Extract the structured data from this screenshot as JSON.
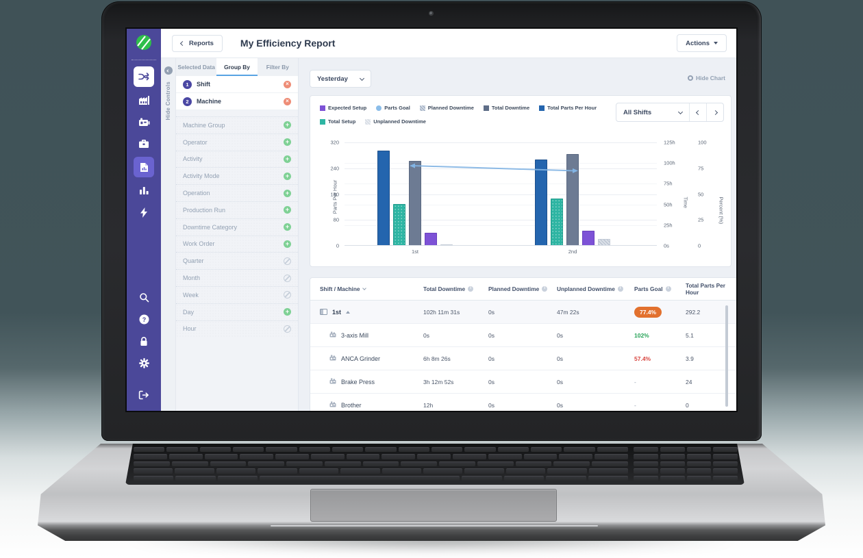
{
  "app": {
    "back_button": "Reports",
    "page_title": "My Efficiency Report",
    "actions_button": "Actions",
    "date_filter": "Yesterday",
    "hide_chart": "Hide Chart",
    "shift_filter": "All Shifts",
    "hide_controls": "Hide Controls"
  },
  "sidebar": {
    "logo": "machinemetrics-logo",
    "top_icons": [
      "shuffle-icon",
      "factory-icon",
      "machine-icon",
      "toolbox-icon",
      "report-icon",
      "bar-chart-icon",
      "lightning-icon"
    ],
    "selected_icon": "shuffle-icon",
    "active_icon": "report-icon",
    "bottom_icons": [
      "search-icon",
      "help-icon",
      "lock-icon",
      "settings-icon",
      "logout-icon"
    ]
  },
  "controls": {
    "tabs": [
      {
        "label": "Selected Data",
        "active": false
      },
      {
        "label": "Group By",
        "active": true
      },
      {
        "label": "Filter By",
        "active": false
      }
    ],
    "selected_groups": [
      {
        "order": "1",
        "label": "Shift"
      },
      {
        "order": "2",
        "label": "Machine"
      }
    ],
    "available_groups": [
      {
        "label": "Machine Group",
        "state": "add"
      },
      {
        "label": "Operator",
        "state": "add"
      },
      {
        "label": "Activity",
        "state": "add"
      },
      {
        "label": "Activity Mode",
        "state": "add"
      },
      {
        "label": "Operation",
        "state": "add"
      },
      {
        "label": "Production Run",
        "state": "add"
      },
      {
        "label": "Downtime Category",
        "state": "add"
      },
      {
        "label": "Work Order",
        "state": "add"
      },
      {
        "label": "Quarter",
        "state": "disabled"
      },
      {
        "label": "Month",
        "state": "disabled"
      },
      {
        "label": "Week",
        "state": "disabled"
      },
      {
        "label": "Day",
        "state": "add"
      },
      {
        "label": "Hour",
        "state": "disabled"
      }
    ]
  },
  "chart_data": {
    "type": "bar",
    "categories": [
      "1st",
      "2nd"
    ],
    "series": [
      {
        "name": "Total Parts Per Hour",
        "type": "bar",
        "axis": "parts",
        "color": "#2465ae",
        "border": "#1c4f8c",
        "values": [
          292.2,
          265
        ]
      },
      {
        "name": "Total Setup",
        "type": "bar",
        "axis": "time",
        "color": "#2eb5a3",
        "border": "#219a8b",
        "pattern": "dots",
        "values": [
          50,
          56
        ]
      },
      {
        "name": "Total Downtime",
        "type": "bar",
        "axis": "time",
        "color": "#6d7b93",
        "border": "#5a6880",
        "values": [
          102.2,
          110
        ]
      },
      {
        "name": "Expected Setup",
        "type": "bar",
        "axis": "time",
        "color": "#7d52d6",
        "border": "#6a41bd",
        "values": [
          15,
          17
        ]
      },
      {
        "name": "Unplanned Downtime",
        "type": "bar",
        "axis": "time",
        "color": "#dde2e9",
        "border": "#c2cad6",
        "pattern": "checker",
        "values": [
          0.8,
          7.5
        ]
      },
      {
        "name": "Parts Goal",
        "type": "line",
        "axis": "percent",
        "color": "#82b4e4",
        "values": [
          77.4,
          72.6
        ]
      }
    ],
    "legend": [
      {
        "label": "Expected Setup",
        "color": "#7d52d6",
        "shape": "square"
      },
      {
        "label": "Parts Goal",
        "color": "#8bbde9",
        "shape": "circle"
      },
      {
        "label": "Planned Downtime",
        "color": "#a4b2c6",
        "shape": "square",
        "pattern": "checker"
      },
      {
        "label": "Total Downtime",
        "color": "#5f6e88",
        "shape": "square"
      },
      {
        "label": "Total Parts Per Hour",
        "color": "#2465ae",
        "shape": "square"
      },
      {
        "label": "Total Setup",
        "color": "#2eb5a3",
        "shape": "square"
      },
      {
        "label": "Unplanned Downtime",
        "color": "#d6dce4",
        "shape": "square",
        "pattern": "checker"
      }
    ],
    "axes": {
      "parts": {
        "label": "Parts Per Hour",
        "max": 320,
        "ticks": [
          "320",
          "240",
          "160",
          "80",
          "0"
        ]
      },
      "time": {
        "label": "Time",
        "max": 125,
        "ticks": [
          "125h",
          "100h",
          "75h",
          "50h",
          "25h",
          "0s"
        ]
      },
      "percent": {
        "label": "Percent (%)",
        "max": 100,
        "ticks": [
          "100",
          "75",
          "50",
          "25",
          "0"
        ]
      }
    },
    "grid": true,
    "legend_position": "top"
  },
  "table": {
    "columns": [
      {
        "label": "Shift / Machine",
        "sortable": true
      },
      {
        "label": "Total Downtime",
        "info": true
      },
      {
        "label": "Planned Downtime",
        "info": true
      },
      {
        "label": "Unplanned Downtime",
        "info": true
      },
      {
        "label": "Parts Goal",
        "info": true
      },
      {
        "label": "Total Parts Per Hour",
        "info": true
      }
    ],
    "rows": [
      {
        "type": "group",
        "label": "1st",
        "total_downtime": "102h 11m 31s",
        "planned": "0s",
        "unplanned": "47m 22s",
        "parts_goal": "77.4%",
        "goal_style": "badge",
        "total_parts_per_hour": "292.2"
      },
      {
        "type": "machine",
        "label": "3-axis Mill",
        "total_downtime": "0s",
        "planned": "0s",
        "unplanned": "0s",
        "parts_goal": "102%",
        "goal_style": "good",
        "total_parts_per_hour": "5.1"
      },
      {
        "type": "machine",
        "label": "ANCA Grinder",
        "total_downtime": "6h 8m 26s",
        "planned": "0s",
        "unplanned": "0s",
        "parts_goal": "57.4%",
        "goal_style": "bad",
        "total_parts_per_hour": "3.9"
      },
      {
        "type": "machine",
        "label": "Brake Press",
        "total_downtime": "3h 12m 52s",
        "planned": "0s",
        "unplanned": "0s",
        "parts_goal": "-",
        "goal_style": "none",
        "total_parts_per_hour": "24"
      },
      {
        "type": "machine",
        "label": "Brother",
        "total_downtime": "12h",
        "planned": "0s",
        "unplanned": "0s",
        "parts_goal": "-",
        "goal_style": "none",
        "total_parts_per_hour": "0"
      }
    ]
  },
  "colors": {
    "sidebar": "#4b4899",
    "sidebar_active": "#6a63d0",
    "tab_underline": "#58a3e3",
    "badge_orange": "#e2712e",
    "good_green": "#27a358",
    "bad_red": "#d8453f",
    "remove_red": "#ee8d77",
    "add_green": "#7fd195",
    "logo_green": "#2fbf4b"
  }
}
